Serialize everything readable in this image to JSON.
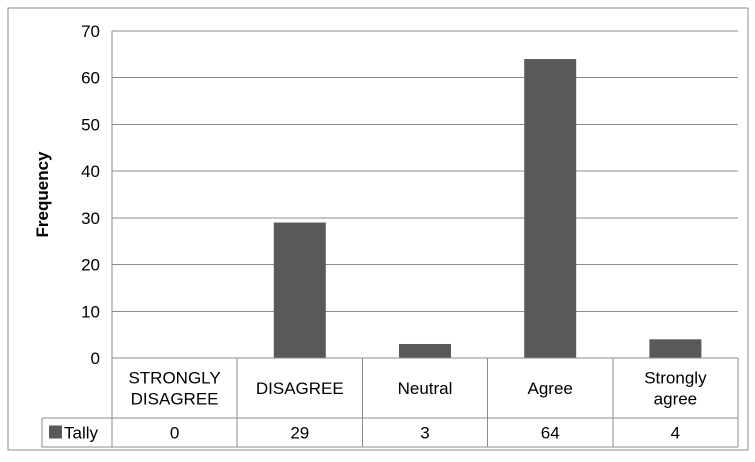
{
  "chart_data": {
    "type": "bar",
    "title": "",
    "xlabel": "",
    "ylabel": "Frequency",
    "ylim": [
      0,
      70
    ],
    "y_ticks": [
      0,
      10,
      20,
      30,
      40,
      50,
      60,
      70
    ],
    "grid": true,
    "categories": [
      [
        "STRONGLY",
        "DISAGREE"
      ],
      [
        "DISAGREE"
      ],
      [
        "Neutral"
      ],
      [
        "Agree"
      ],
      [
        "Strongly",
        "agree"
      ]
    ],
    "series": [
      {
        "name": "Tally",
        "values": [
          0,
          29,
          3,
          64,
          4
        ],
        "color": "#595959"
      }
    ],
    "data_table": {
      "row_label": "Tally",
      "cells": [
        "0",
        "29",
        "3",
        "64",
        "4"
      ]
    },
    "legend": "data-table"
  }
}
